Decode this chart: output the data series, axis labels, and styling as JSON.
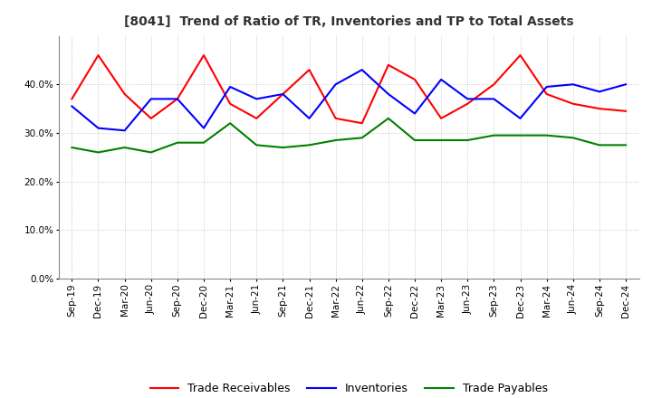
{
  "title": "[8041]  Trend of Ratio of TR, Inventories and TP to Total Assets",
  "x_labels": [
    "Sep-19",
    "Dec-19",
    "Mar-20",
    "Jun-20",
    "Sep-20",
    "Dec-20",
    "Mar-21",
    "Jun-21",
    "Sep-21",
    "Dec-21",
    "Mar-22",
    "Jun-22",
    "Sep-22",
    "Dec-22",
    "Mar-23",
    "Jun-23",
    "Sep-23",
    "Dec-23",
    "Mar-24",
    "Jun-24",
    "Sep-24",
    "Dec-24"
  ],
  "trade_receivables": [
    0.37,
    0.46,
    0.38,
    0.33,
    0.37,
    0.46,
    0.36,
    0.33,
    0.38,
    0.43,
    0.33,
    0.32,
    0.44,
    0.41,
    0.33,
    0.36,
    0.4,
    0.46,
    0.38,
    0.36,
    0.35,
    0.345
  ],
  "inventories": [
    0.355,
    0.31,
    0.305,
    0.37,
    0.37,
    0.31,
    0.395,
    0.37,
    0.38,
    0.33,
    0.4,
    0.43,
    0.38,
    0.34,
    0.41,
    0.37,
    0.37,
    0.33,
    0.395,
    0.4,
    0.385,
    0.4
  ],
  "trade_payables": [
    0.27,
    0.26,
    0.27,
    0.26,
    0.28,
    0.28,
    0.32,
    0.275,
    0.27,
    0.275,
    0.285,
    0.29,
    0.33,
    0.285,
    0.285,
    0.285,
    0.295,
    0.295,
    0.295,
    0.29,
    0.275,
    0.275
  ],
  "tr_color": "#ff0000",
  "inv_color": "#0000ff",
  "tp_color": "#008000",
  "ylim": [
    0.0,
    0.5
  ],
  "yticks": [
    0.0,
    0.1,
    0.2,
    0.3,
    0.4
  ],
  "background_color": "#ffffff",
  "grid_color": "#bbbbbb",
  "title_fontsize": 10,
  "tick_fontsize": 7.5,
  "legend_fontsize": 9
}
